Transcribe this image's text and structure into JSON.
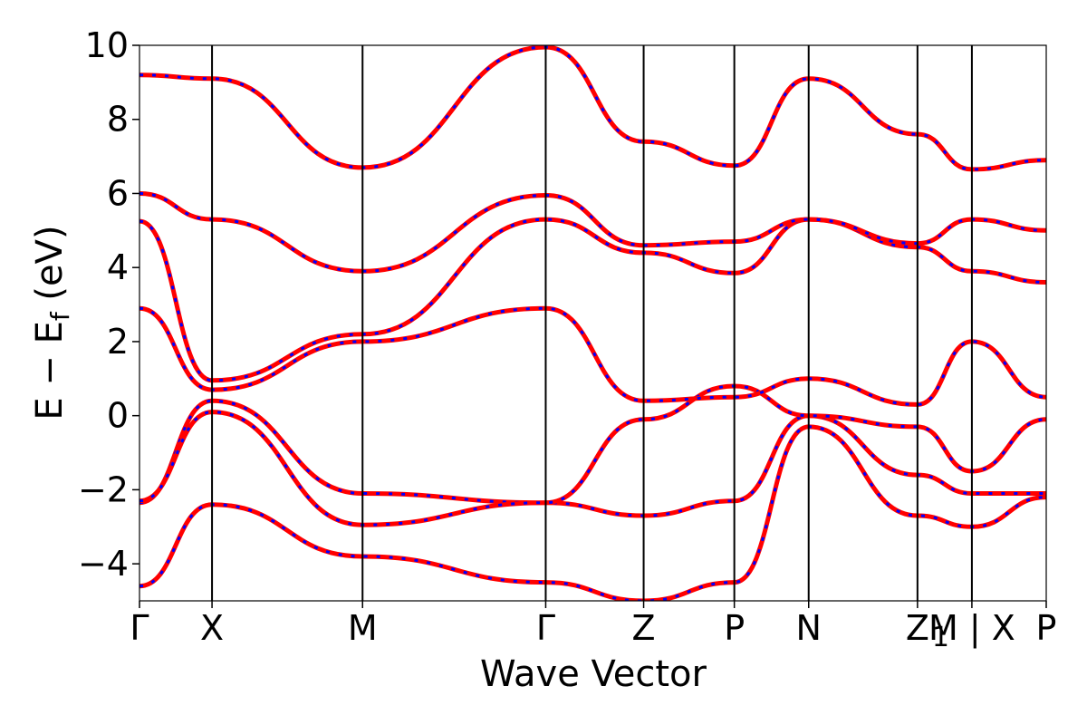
{
  "chart_data": {
    "type": "line",
    "title": "",
    "xlabel": "Wave Vector",
    "ylabel": "E − E",
    "ylabel_sub": "f",
    "ylabel_unit": " (eV)",
    "ylim": [
      -5,
      10
    ],
    "yticks": [
      -4,
      -2,
      0,
      2,
      4,
      6,
      8,
      10
    ],
    "ytick_labels": [
      "−4",
      "−2",
      "0",
      "2",
      "4",
      "6",
      "8",
      "10"
    ],
    "grid": false,
    "legend": "none",
    "high_symmetry_points": [
      {
        "label": "Γ",
        "k": 0.0
      },
      {
        "label": "X",
        "k": 0.08
      },
      {
        "label": "M",
        "k": 0.246
      },
      {
        "label": "Γ",
        "k": 0.448
      },
      {
        "label": "Z",
        "k": 0.556
      },
      {
        "label": "P",
        "k": 0.656
      },
      {
        "label": "N",
        "k": 0.738
      },
      {
        "label": "Z",
        "k": 0.858
      },
      {
        "label": "M | X",
        "k": 0.918
      },
      {
        "label": "P",
        "k": 1.0
      }
    ],
    "label_overlap": {
      "text": "1",
      "after_index": 7
    },
    "series_style": {
      "line_color": "#ff0000",
      "dash_color": "#0000ff"
    },
    "series": [
      {
        "k": [
          0.0,
          0.08,
          0.246,
          0.448,
          0.556,
          0.656,
          0.738,
          0.858,
          0.918,
          1.0
        ],
        "e": [
          -2.35,
          0.4,
          -2.1,
          -2.35,
          -2.7,
          -2.3,
          0.0,
          -1.6,
          -2.1,
          -2.1
        ]
      },
      {
        "k": [
          0.0,
          0.08,
          0.246,
          0.448,
          0.556,
          0.656,
          0.738,
          0.858,
          0.918,
          1.0
        ],
        "e": [
          -2.3,
          0.1,
          -2.95,
          -2.35,
          -0.1,
          0.8,
          0.0,
          -0.3,
          -1.5,
          -0.1
        ]
      },
      {
        "k": [
          0.0,
          0.08,
          0.246,
          0.448,
          0.556,
          0.656,
          0.738,
          0.858,
          0.918,
          1.0
        ],
        "e": [
          2.9,
          0.7,
          2.0,
          2.9,
          0.4,
          0.5,
          1.0,
          0.3,
          2.0,
          0.5
        ]
      },
      {
        "k": [
          0.0,
          0.08,
          0.246,
          0.448,
          0.556,
          0.656,
          0.738,
          0.858,
          0.918,
          1.0
        ],
        "e": [
          5.25,
          0.95,
          2.2,
          5.3,
          4.4,
          3.85,
          5.3,
          4.55,
          3.9,
          3.6
        ]
      },
      {
        "k": [
          0.0,
          0.08,
          0.246,
          0.448,
          0.556,
          0.656,
          0.738,
          0.858,
          0.918,
          1.0
        ],
        "e": [
          6.0,
          5.3,
          3.9,
          5.95,
          4.6,
          4.7,
          5.3,
          4.65,
          5.3,
          5.0
        ]
      },
      {
        "k": [
          0.0,
          0.08,
          0.246,
          0.448,
          0.556,
          0.656,
          0.738,
          0.858,
          0.918,
          1.0
        ],
        "e": [
          9.2,
          9.1,
          6.7,
          9.95,
          7.4,
          6.75,
          9.1,
          7.6,
          6.65,
          6.9
        ]
      },
      {
        "k": [
          0.0,
          0.08,
          0.246,
          0.448,
          0.556,
          0.656,
          0.738,
          0.858,
          0.918,
          1.0
        ],
        "e": [
          -4.6,
          -2.4,
          -3.8,
          -4.5,
          -5.0,
          -4.5,
          -0.3,
          -2.7,
          -3.0,
          -2.2
        ]
      }
    ]
  }
}
